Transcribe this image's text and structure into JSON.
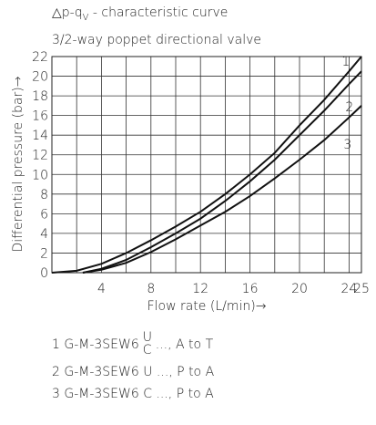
{
  "chart_data": {
    "type": "line",
    "title_parts": [
      "△p-q",
      "V",
      " - characteristic curve"
    ],
    "subtitle": "3/2-way poppet directional valve",
    "xlabel": "Flow rate (L/min)→",
    "ylabel": "Differential pressure (bar)→",
    "xlim": [
      0,
      25
    ],
    "ylim": [
      0,
      22
    ],
    "xticks": [
      4,
      8,
      12,
      16,
      20,
      24,
      25
    ],
    "x_minor_grid": [
      2,
      6,
      10,
      14,
      18,
      22
    ],
    "yticks": [
      0,
      2,
      4,
      6,
      8,
      10,
      12,
      14,
      16,
      18,
      20,
      22
    ],
    "grid": true,
    "series": [
      {
        "name": "1",
        "color": "#111111",
        "x": [
          0,
          2,
          4,
          6,
          8,
          10,
          12,
          14,
          16,
          18,
          20,
          22,
          24,
          25
        ],
        "values": [
          0,
          0.2,
          0.9,
          2.0,
          3.3,
          4.7,
          6.2,
          8.0,
          10.0,
          12.2,
          15.0,
          17.6,
          20.5,
          22
        ]
      },
      {
        "name": "2",
        "color": "#111111",
        "x": [
          2.5,
          4,
          6,
          8,
          10,
          12,
          14,
          16,
          18,
          20,
          22,
          24,
          25
        ],
        "values": [
          0,
          0.4,
          1.3,
          2.6,
          4.0,
          5.5,
          7.3,
          9.3,
          11.5,
          14.0,
          16.5,
          19.2,
          20.5
        ]
      },
      {
        "name": "3",
        "color": "#111111",
        "x": [
          2.5,
          4,
          6,
          8,
          10,
          12,
          14,
          16,
          18,
          20,
          22,
          24,
          25
        ],
        "values": [
          0,
          0.3,
          1.0,
          2.1,
          3.4,
          4.8,
          6.2,
          7.8,
          9.6,
          11.5,
          13.5,
          15.8,
          17.0
        ]
      }
    ],
    "notes": [
      {
        "text": "1 G-M-3SEW6",
        "over": "U",
        "under": "C",
        "rest": "..., A to T"
      },
      {
        "text": "2 G-M-3SEW6 U ..., P to A"
      },
      {
        "text": "3 G-M-3SEW6 C ..., P to A"
      }
    ]
  }
}
